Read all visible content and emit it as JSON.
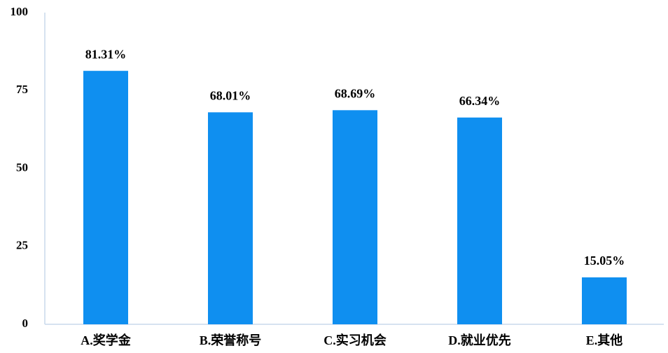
{
  "chart_data": {
    "type": "bar",
    "categories": [
      "A.奖学金",
      "B.荣誉称号",
      "C.实习机会",
      "D.就业优先",
      "E.其他"
    ],
    "values": [
      81.31,
      68.01,
      68.69,
      66.34,
      15.05
    ],
    "value_labels": [
      "81.31%",
      "68.01%",
      "68.69%",
      "66.34%",
      "15.05%"
    ],
    "color": "#0f8ff0",
    "ylim": [
      0,
      100
    ],
    "yticks": [
      0,
      25,
      50,
      75,
      100
    ],
    "grid": false
  }
}
